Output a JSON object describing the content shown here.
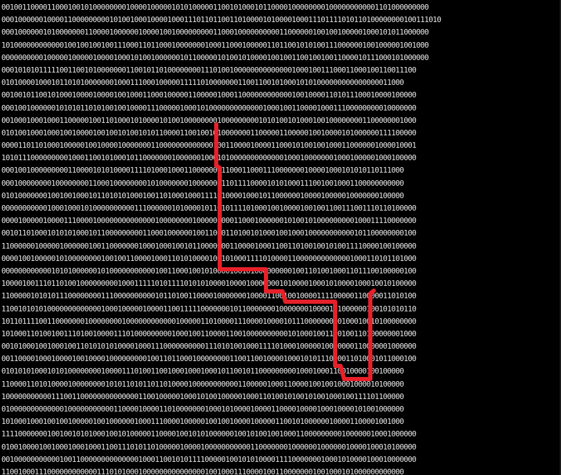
{
  "screen": {
    "background_color": "#000000",
    "text_color": "#e8e8e8",
    "path_color": "#e8202a",
    "binary_rows": [
      "0010011000011000100101000000001000010000010101000001100101000101100001000000001000000000001101000000000",
      "0001000000100001100000000010100100010000100011101101100110100001010000100011101111010110100000000100111010",
      "0001000000101000000011000010000001000010010000000001100010000000000110000001001001000001000101011000000",
      "1010000000000001001001001001110001101100010000000100011000100000110110010101001110000001001000001001000",
      "0000000000100000100000100001000101001000000101100000101001010000100100110010010011000010111000101000000",
      "0001010101111100110010100000001100101101000000001110100100000000000000100010011100011000100110011100",
      "0101000010001011010100000001000111000100000111110100000001100110010100010101000000000000000011000",
      "0010010110010100010000100001001000110001000001100000100011000000000000100100001101011100010000100000",
      "0001001000000101010110101001001000011100000100010100000000000001000100110000100011100000000010000000",
      "0010001000100011000001001101000101000010100100000000100000000010101001010001001000000001100000001000",
      "0101001000100010010000100100101001010110000110010010100000001100000110000010010000101000000111100000",
      "0000110110100010000010010000100000001100000000000001001100001000011000101001001000110000001000010001",
      "1010111000000000100011001010001011000000010000001000101000000000000010001000000010001000001000100000",
      "0001001000000000110000101010000111101000100011000000011000110001110000000100001000101010110111000",
      "0001000000001000000001100010000000010100000001000000011011110000101010001110010010001100000000000",
      "0101000000010010010001011010101000100110100010001111010000100010110000001000010000010000000100000",
      "0000000000010001000101000000000011100000010100001011010111101000100100001001001100111001110110100000",
      "0000100000100001110000100000000000000100000000100000100011000100000010100101000000000100011110000000",
      "0010110100010101010001011000000000110001000000100110001101001010001001000100000000000101100000000100",
      "1100000010000010000001001100000001000100010010110000000110000100011001101001001010011110000100100000",
      "0000100100000101000000001001001100001000110101000010010100011110100001100000000000001000110101101000",
      "0000000000001010100000010100000000000100110001001010000100101000000000100110100100011011100100000100",
      "1000010011101101001000000000100011111010111101010100001000010000000101000010001010000100010010100000",
      "1100000101010111000000001110000000000101101001100001000000010000110010010000111100000110000011010100",
      "1100101010100000000000001000100000100001100111110000000101100000001000000010000101000000100101010110",
      "1011011110011000000010000000010000000000001000001101000011100001000010111000000000100010010100000000",
      "1010001101001001110100100001110100000000010001001100001100100000000001010001001100100110100000001000",
      "0010100010010001001101010101000010001110000000000111010100100011110100010000010000000110000001000000",
      "0011000010001000010010000100000000010011011000100000000110011001000010001010111000011010001011000100",
      "0101010100010101000000001000011101001100100010001000101100101100000000010001000110010000100100000",
      "1100001101010000100000000101011010110110100001000000000001100000100011000010010010001000010100000",
      "1000000000001110011000000000000001100100000100010100100000100011010010100101001000100111101100000",
      "0100000000000001000000000001100001000011010000000100010100001000011000010000100010000101001000000",
      "1010001000100100100000100100000010001110000100000100100100001000001100101000000100001100001001000",
      "1111000000010010010101000100101000001100001001010100000010010100100100011000000000100000010001000000",
      "0100100001001000100010001100111010110100000100001000000000001100000001000000100000010000100010100000",
      "0010000000000010011000000000000001000110010101111000001001010100001111000000010001010000100010000000",
      "1100100011100000000000011101010001000000000000000100100011100001001100000001001000101000000000000"
    ]
  }
}
